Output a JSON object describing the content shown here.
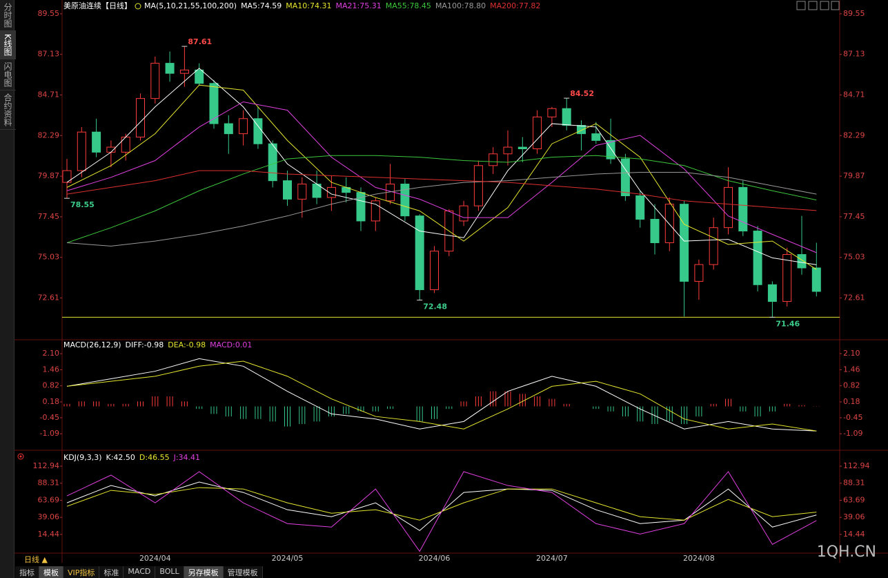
{
  "toolbar": [
    "分时图",
    "K线图",
    "闪电图",
    "合约资料"
  ],
  "timeframe": "日线 ▲",
  "tabs": [
    "指标",
    "模板",
    "VIP指标",
    "标准",
    "MACD",
    "BOLL",
    "另存模板",
    "管理模板"
  ],
  "watermark": "1QH.CN",
  "date_labels": [
    {
      "label": "2024/04",
      "index": 6
    },
    {
      "label": "2024/05",
      "index": 15
    },
    {
      "label": "2024/06",
      "index": 25
    },
    {
      "label": "2024/07",
      "index": 33
    },
    {
      "label": "2024/08",
      "index": 43
    }
  ],
  "chart_data": [
    {
      "type": "candlestick",
      "title": "美原油连续【日线】",
      "subtitle": "MA(5,10,21,55,100,200)",
      "ylim": [
        70.2,
        89.96
      ],
      "yticks": [
        72.61,
        75.03,
        77.45,
        79.87,
        82.29,
        84.71,
        87.13,
        89.55
      ],
      "up_color": "#ff3b3b",
      "down_color": "#36c98a",
      "hline": 71.46,
      "hline_color": "#e6e62e",
      "candles": [
        [
          79.5,
          80.9,
          78.55,
          80.2
        ],
        [
          80.2,
          82.8,
          79.8,
          82.5
        ],
        [
          82.5,
          83.3,
          81.0,
          81.3
        ],
        [
          81.3,
          82.0,
          80.4,
          81.6
        ],
        [
          81.3,
          82.4,
          80.8,
          82.2
        ],
        [
          82.2,
          84.8,
          82.0,
          84.5
        ],
        [
          84.5,
          87.0,
          84.2,
          86.6
        ],
        [
          86.6,
          87.3,
          85.5,
          86.0
        ],
        [
          86.0,
          87.61,
          85.2,
          86.2
        ],
        [
          86.2,
          86.6,
          85.3,
          85.4
        ],
        [
          85.4,
          85.6,
          82.7,
          83.0
        ],
        [
          83.0,
          83.5,
          81.2,
          82.4
        ],
        [
          82.4,
          83.8,
          81.7,
          83.3
        ],
        [
          83.3,
          84.0,
          81.5,
          81.8
        ],
        [
          81.8,
          82.0,
          79.2,
          79.6
        ],
        [
          79.6,
          80.2,
          78.1,
          78.5
        ],
        [
          78.5,
          79.8,
          77.4,
          79.4
        ],
        [
          79.4,
          80.2,
          78.2,
          78.6
        ],
        [
          78.6,
          79.9,
          77.8,
          79.2
        ],
        [
          79.2,
          79.8,
          78.3,
          78.9
        ],
        [
          78.9,
          79.2,
          76.6,
          77.2
        ],
        [
          77.2,
          78.6,
          76.6,
          78.4
        ],
        [
          78.4,
          80.6,
          78.2,
          79.4
        ],
        [
          79.4,
          79.7,
          77.2,
          77.5
        ],
        [
          77.5,
          77.6,
          72.48,
          73.1
        ],
        [
          73.1,
          75.7,
          72.9,
          75.4
        ],
        [
          75.4,
          77.9,
          75.1,
          77.8
        ],
        [
          77.2,
          78.4,
          76.9,
          78.1
        ],
        [
          78.1,
          80.8,
          77.8,
          80.5
        ],
        [
          80.5,
          81.6,
          80.0,
          81.2
        ],
        [
          81.2,
          82.6,
          80.5,
          81.6
        ],
        [
          81.6,
          82.2,
          80.7,
          81.5
        ],
        [
          81.5,
          83.8,
          81.2,
          83.4
        ],
        [
          83.4,
          84.0,
          82.8,
          83.9
        ],
        [
          83.9,
          84.52,
          82.6,
          82.9
        ],
        [
          82.9,
          83.2,
          81.4,
          82.4
        ],
        [
          82.4,
          83.1,
          81.8,
          82.0
        ],
        [
          82.0,
          83.3,
          80.6,
          80.9
        ],
        [
          80.9,
          81.2,
          78.4,
          78.7
        ],
        [
          78.7,
          79.0,
          76.8,
          77.3
        ],
        [
          77.3,
          78.2,
          75.2,
          75.9
        ],
        [
          75.9,
          78.6,
          75.4,
          78.2
        ],
        [
          78.2,
          78.4,
          71.5,
          73.6
        ],
        [
          73.6,
          74.9,
          72.5,
          74.6
        ],
        [
          74.6,
          77.4,
          74.3,
          76.8
        ],
        [
          76.8,
          80.4,
          76.4,
          79.2
        ],
        [
          79.2,
          79.6,
          76.3,
          76.6
        ],
        [
          76.6,
          76.9,
          73.0,
          73.4
        ],
        [
          73.4,
          73.6,
          71.46,
          72.4
        ],
        [
          72.4,
          75.6,
          72.1,
          75.2
        ],
        [
          75.2,
          77.5,
          74.0,
          74.4
        ],
        [
          74.4,
          75.9,
          72.7,
          73.0
        ]
      ],
      "annotations": [
        {
          "value": 87.61,
          "index": 8
        },
        {
          "value": 78.55,
          "index": 0
        },
        {
          "value": 72.48,
          "index": 24
        },
        {
          "value": 84.52,
          "index": 34
        },
        {
          "value": 71.46,
          "index": 48
        }
      ],
      "x": [
        0,
        3,
        6,
        9,
        12,
        15,
        18,
        21,
        24,
        27,
        30,
        33,
        36,
        39,
        42,
        45,
        48,
        51
      ],
      "series": [
        {
          "name": "MA5:74.59",
          "color": "#ffffff",
          "values": [
            79.5,
            81.3,
            84.0,
            86.3,
            84.0,
            80.6,
            78.8,
            78.2,
            76.6,
            76.2,
            80.2,
            83.0,
            82.8,
            79.0,
            76.0,
            76.1,
            75.0,
            74.59
          ]
        },
        {
          "name": "MA10:74.31",
          "color": "#e6e62e",
          "values": [
            79.2,
            80.5,
            82.4,
            85.3,
            85.0,
            82.0,
            79.5,
            78.6,
            77.8,
            76.0,
            78.0,
            81.8,
            83.0,
            81.0,
            77.0,
            75.8,
            76.0,
            74.31
          ]
        },
        {
          "name": "MA21:75.31",
          "color": "#e040e0",
          "values": [
            79.0,
            79.8,
            80.8,
            82.8,
            84.3,
            83.8,
            81.0,
            79.2,
            78.5,
            77.4,
            77.4,
            79.5,
            81.7,
            82.3,
            80.3,
            77.5,
            76.4,
            75.31
          ]
        },
        {
          "name": "MA55:78.45",
          "color": "#3cc83c",
          "values": [
            75.9,
            76.8,
            77.8,
            79.0,
            80.0,
            80.9,
            81.1,
            81.1,
            81.0,
            80.8,
            80.7,
            81.0,
            81.1,
            80.9,
            80.5,
            79.6,
            79.0,
            78.45
          ]
        },
        {
          "name": "MA100:78.80",
          "color": "#9a9a9a",
          "values": [
            75.9,
            75.7,
            76.0,
            76.4,
            76.9,
            77.5,
            78.2,
            78.8,
            79.2,
            79.5,
            79.6,
            79.8,
            80.0,
            80.1,
            80.1,
            79.8,
            79.3,
            78.8
          ]
        },
        {
          "name": "MA200:77.82",
          "color": "#e03030",
          "values": [
            78.8,
            79.2,
            79.6,
            80.2,
            80.2,
            80.0,
            79.9,
            79.8,
            79.7,
            79.6,
            79.5,
            79.3,
            79.1,
            78.8,
            78.4,
            78.2,
            78.0,
            77.82
          ]
        }
      ]
    },
    {
      "type": "macd",
      "title": "MACD(26,12,9)",
      "ylim": [
        -1.69,
        2.57
      ],
      "yticks": [
        -1.09,
        -0.45,
        0.18,
        0.82,
        1.46,
        {
          "value": 2.1,
          "label": "2.10"
        }
      ],
      "up_color": "#ff3b3b",
      "down_color": "#36c98a",
      "histogram": [
        0.1,
        0.2,
        0.2,
        0.1,
        0.1,
        0.2,
        0.4,
        0.4,
        0.2,
        -0.1,
        -0.3,
        -0.4,
        -0.5,
        -0.5,
        -0.6,
        -0.8,
        -0.7,
        -0.6,
        -0.4,
        -0.3,
        -0.2,
        -0.2,
        -0.1,
        0.0,
        -0.6,
        -0.5,
        -0.1,
        0.2,
        0.4,
        0.6,
        0.6,
        0.5,
        0.4,
        0.3,
        0.1,
        0.0,
        -0.1,
        -0.2,
        -0.4,
        -0.6,
        -0.7,
        -0.6,
        -0.7,
        -0.4,
        0.1,
        0.3,
        -0.2,
        -0.4,
        -0.2,
        0.1,
        0.05,
        0.01
      ],
      "histogram_name": "MACD:0.01",
      "histogram_color": "#e040e0",
      "x": [
        0,
        3,
        6,
        9,
        12,
        15,
        18,
        21,
        24,
        27,
        30,
        33,
        36,
        39,
        42,
        45,
        48,
        51
      ],
      "series": [
        {
          "name": "DIFF:-0.98",
          "color": "#ffffff",
          "values": [
            0.8,
            1.1,
            1.4,
            1.9,
            1.6,
            0.6,
            -0.3,
            -0.5,
            -0.9,
            -0.6,
            0.6,
            1.2,
            0.8,
            -0.1,
            -0.9,
            -0.6,
            -0.9,
            -0.98
          ]
        },
        {
          "name": "DEA:-0.98",
          "color": "#e6e62e",
          "values": [
            0.8,
            1.0,
            1.2,
            1.6,
            1.8,
            1.2,
            0.3,
            -0.4,
            -0.6,
            -0.9,
            -0.1,
            0.8,
            1.0,
            0.5,
            -0.5,
            -0.9,
            -0.7,
            -0.98
          ]
        }
      ]
    },
    {
      "type": "kdj",
      "title": "KDJ(9,3,3)",
      "ylim": [
        -11.6,
        127.9
      ],
      "yticks": [
        14.44,
        39.06,
        63.69,
        88.31,
        112.94
      ],
      "x": [
        0,
        3,
        6,
        9,
        12,
        15,
        18,
        21,
        24,
        27,
        30,
        33,
        36,
        39,
        42,
        45,
        48,
        51
      ],
      "series": [
        {
          "name": "K:42.50",
          "color": "#ffffff",
          "values": [
            60,
            85,
            70,
            90,
            75,
            50,
            40,
            60,
            20,
            75,
            80,
            78,
            50,
            30,
            35,
            80,
            25,
            42.5
          ]
        },
        {
          "name": "D:46.55",
          "color": "#e6e62e",
          "values": [
            55,
            78,
            72,
            82,
            80,
            60,
            45,
            50,
            35,
            60,
            80,
            80,
            60,
            40,
            35,
            65,
            40,
            46.55
          ]
        },
        {
          "name": "J:34.41",
          "color": "#e040e0",
          "values": [
            70,
            100,
            60,
            105,
            60,
            30,
            25,
            80,
            -10,
            105,
            85,
            75,
            30,
            15,
            30,
            105,
            0,
            34.41
          ]
        }
      ]
    }
  ]
}
